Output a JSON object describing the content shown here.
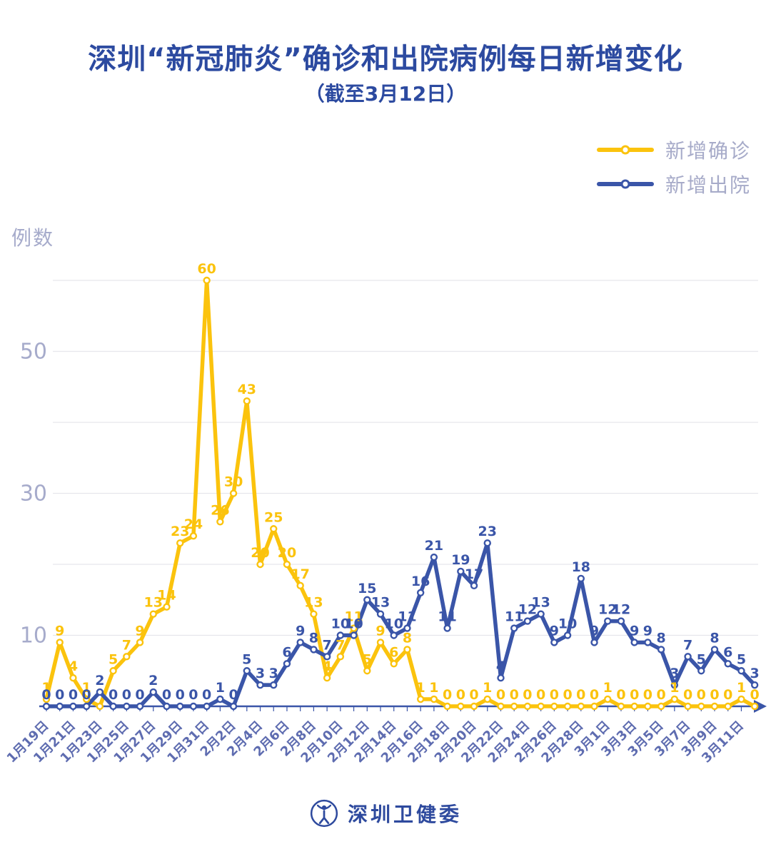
{
  "colors": {
    "title": "#2C4AA0",
    "confirmed": "#FBC30D",
    "discharged": "#3A55A8",
    "axis_label": "#5E6CB0",
    "muted_label": "#A6ABCB",
    "gridline": "#E6E6EC",
    "brand": "#2E4A9E"
  },
  "chart_data": {
    "type": "line",
    "title": "深圳“新冠肺炎”确诊和出院病例每日新增变化",
    "subtitle": "（截至3月12日）",
    "ylabel": "例数",
    "xlabel": "",
    "legend_position": "top-right",
    "grid": true,
    "ylim": [
      0,
      62
    ],
    "grid_values": [
      10,
      20,
      30,
      40,
      50,
      60
    ],
    "ytick_labels": [
      10,
      30,
      50
    ],
    "x_tick_label_every": 2,
    "x": [
      "1月19日",
      "1月20日",
      "1月21日",
      "1月22日",
      "1月23日",
      "1月24日",
      "1月25日",
      "1月26日",
      "1月27日",
      "1月28日",
      "1月29日",
      "1月30日",
      "1月31日",
      "2月1日",
      "2月2日",
      "2月3日",
      "2月4日",
      "2月5日",
      "2月6日",
      "2月7日",
      "2月8日",
      "2月9日",
      "2月10日",
      "2月11日",
      "2月12日",
      "2月13日",
      "2月14日",
      "2月15日",
      "2月16日",
      "2月17日",
      "2月18日",
      "2月19日",
      "2月20日",
      "2月21日",
      "2月22日",
      "2月23日",
      "2月24日",
      "2月25日",
      "2月26日",
      "2月27日",
      "2月28日",
      "2月29日",
      "3月1日",
      "3月2日",
      "3月3日",
      "3月4日",
      "3月5日",
      "3月6日",
      "3月7日",
      "3月8日",
      "3月9日",
      "3月10日",
      "3月11日",
      "3月12日"
    ],
    "series": [
      {
        "name": "新增确诊",
        "color": "#FBC30D",
        "values": [
          1,
          9,
          4,
          1,
          0,
          5,
          7,
          9,
          13,
          14,
          23,
          24,
          60,
          26,
          30,
          43,
          20,
          25,
          20,
          17,
          13,
          4,
          7,
          11,
          5,
          9,
          6,
          8,
          1,
          1,
          0,
          0,
          0,
          1,
          0,
          0,
          0,
          0,
          0,
          0,
          0,
          0,
          1,
          0,
          0,
          0,
          0,
          1,
          0,
          0,
          0,
          0,
          1,
          0
        ],
        "hidden_label_indices": [
          4
        ]
      },
      {
        "name": "新增出院",
        "color": "#3A55A8",
        "values": [
          0,
          0,
          0,
          0,
          2,
          0,
          0,
          0,
          2,
          0,
          0,
          0,
          0,
          1,
          0,
          5,
          3,
          3,
          6,
          9,
          8,
          7,
          10,
          10,
          15,
          13,
          10,
          11,
          16,
          21,
          11,
          19,
          17,
          23,
          4,
          11,
          12,
          13,
          9,
          10,
          18,
          9,
          12,
          12,
          9,
          9,
          8,
          3,
          7,
          5,
          8,
          6,
          5,
          3
        ],
        "hidden_label_indices": []
      }
    ]
  },
  "footer": {
    "brand": "深圳卫健委"
  }
}
